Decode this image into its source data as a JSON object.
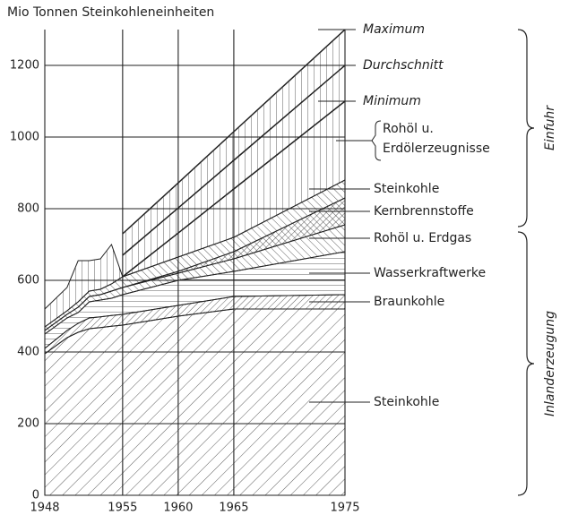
{
  "chart_data": {
    "type": "area",
    "y_label": "Mio Tonnen Steinkohleneinheiten",
    "x": [
      1948,
      1950,
      1951,
      1952,
      1953,
      1954,
      1955,
      1960,
      1965,
      1975
    ],
    "xlim": [
      1948,
      1975
    ],
    "xticks": [
      1948,
      1955,
      1960,
      1965,
      1975
    ],
    "ylim": [
      0,
      1300
    ],
    "yticks": [
      0,
      200,
      400,
      600,
      800,
      1000,
      1200
    ],
    "grid": true,
    "color": "#222",
    "series": [
      {
        "name": "Steinkohle",
        "pattern": "diag-down",
        "values": [
          395,
          440,
          455,
          465,
          468,
          472,
          475,
          500,
          520,
          520
        ]
      },
      {
        "name": "Braunkohle",
        "pattern": "diag-down-dense",
        "values": [
          15,
          20,
          25,
          30,
          30,
          30,
          30,
          30,
          35,
          40
        ]
      },
      {
        "name": "Wasserkraftwerke",
        "pattern": "horizontal",
        "values": [
          40,
          35,
          30,
          45,
          47,
          48,
          55,
          70,
          70,
          120
        ]
      },
      {
        "name": "Rohöl u. Erdgas",
        "pattern": "diag-up",
        "values": [
          10,
          10,
          15,
          15,
          15,
          20,
          20,
          20,
          35,
          75
        ]
      },
      {
        "name": "Kernbrennstoffe",
        "pattern": "cross",
        "values": [
          0,
          0,
          0,
          0,
          0,
          0,
          0,
          5,
          20,
          75
        ]
      },
      {
        "name": "Steinkohle",
        "pattern": "diag-up",
        "values": [
          10,
          10,
          15,
          15,
          15,
          20,
          30,
          40,
          40,
          50
        ]
      },
      {
        "name": "Rohöl u. Erdölerzeugnisse",
        "pattern": "vertical",
        "values": [
          50,
          65,
          115,
          85,
          85,
          110,
          0,
          67,
          135,
          220
        ]
      }
    ],
    "lines": [
      {
        "name": "Maximum",
        "values": [
          null,
          null,
          null,
          null,
          null,
          null,
          730,
          872,
          1015,
          1300
        ]
      },
      {
        "name": "Durchschnitt",
        "values": [
          null,
          null,
          null,
          null,
          null,
          null,
          670,
          802,
          935,
          1200
        ]
      },
      {
        "name": "Minimum",
        "values": [
          null,
          null,
          null,
          null,
          null,
          null,
          610,
          732,
          855,
          1100
        ]
      }
    ],
    "groups": [
      "Einfuhr",
      "Inlanderzeugung"
    ]
  }
}
